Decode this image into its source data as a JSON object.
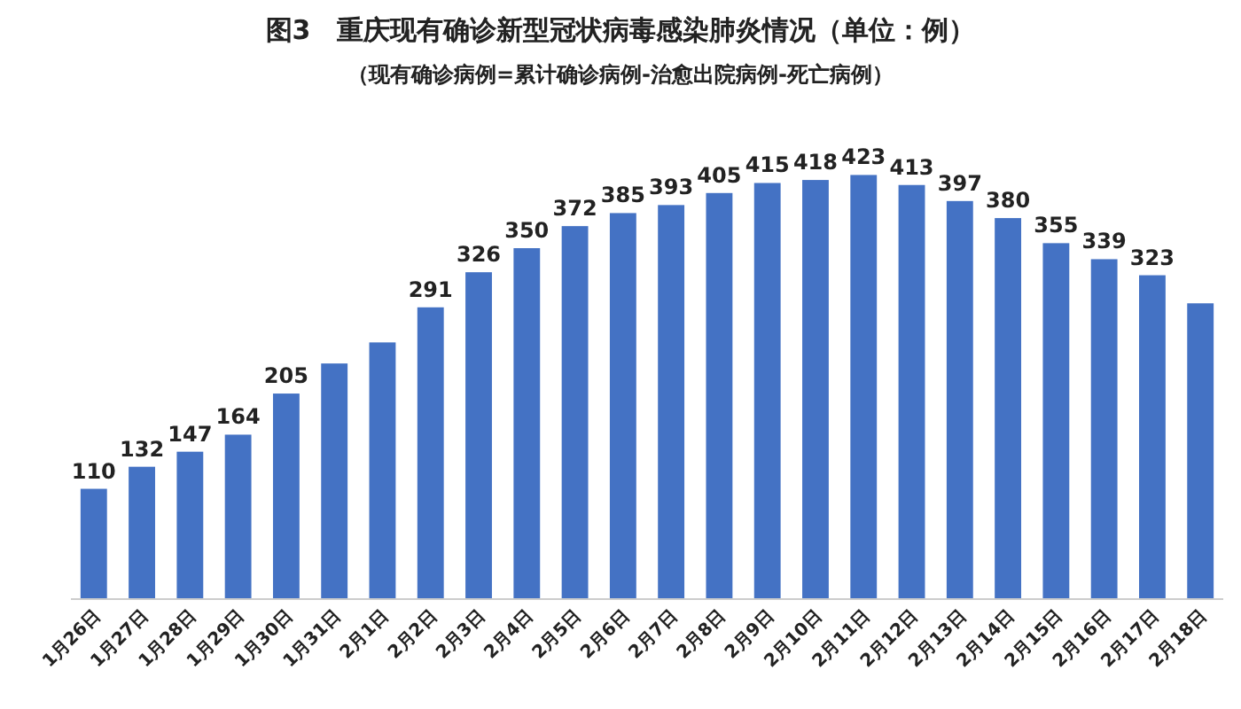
{
  "chart_data": {
    "type": "bar",
    "title": "图3　重庆现有确诊新型冠状病毒感染肺炎情况（单位：例）",
    "subtitle": "（现有确诊病例=累计确诊病例-治愈出院病例-死亡病例）",
    "categories": [
      "1月26日",
      "1月27日",
      "1月28日",
      "1月29日",
      "1月30日",
      "1月31日",
      "2月1日",
      "2月2日",
      "2月3日",
      "2月4日",
      "2月5日",
      "2月6日",
      "2月7日",
      "2月8日",
      "2月9日",
      "2月10日",
      "2月11日",
      "2月12日",
      "2月13日",
      "2月14日",
      "2月15日",
      "2月16日",
      "2月17日",
      "2月18日"
    ],
    "values": [
      110,
      132,
      147,
      164,
      205,
      235,
      256,
      291,
      326,
      350,
      372,
      385,
      393,
      405,
      415,
      418,
      423,
      413,
      397,
      380,
      355,
      339,
      323,
      295
    ],
    "value_labels": [
      "110",
      "132",
      "147",
      "164",
      "205",
      null,
      null,
      "291",
      "326",
      "350",
      "372",
      "385",
      "393",
      "405",
      "415",
      "418",
      "423",
      "413",
      "397",
      "380",
      "355",
      "339",
      "323",
      null
    ],
    "color": "#4472c4"
  }
}
